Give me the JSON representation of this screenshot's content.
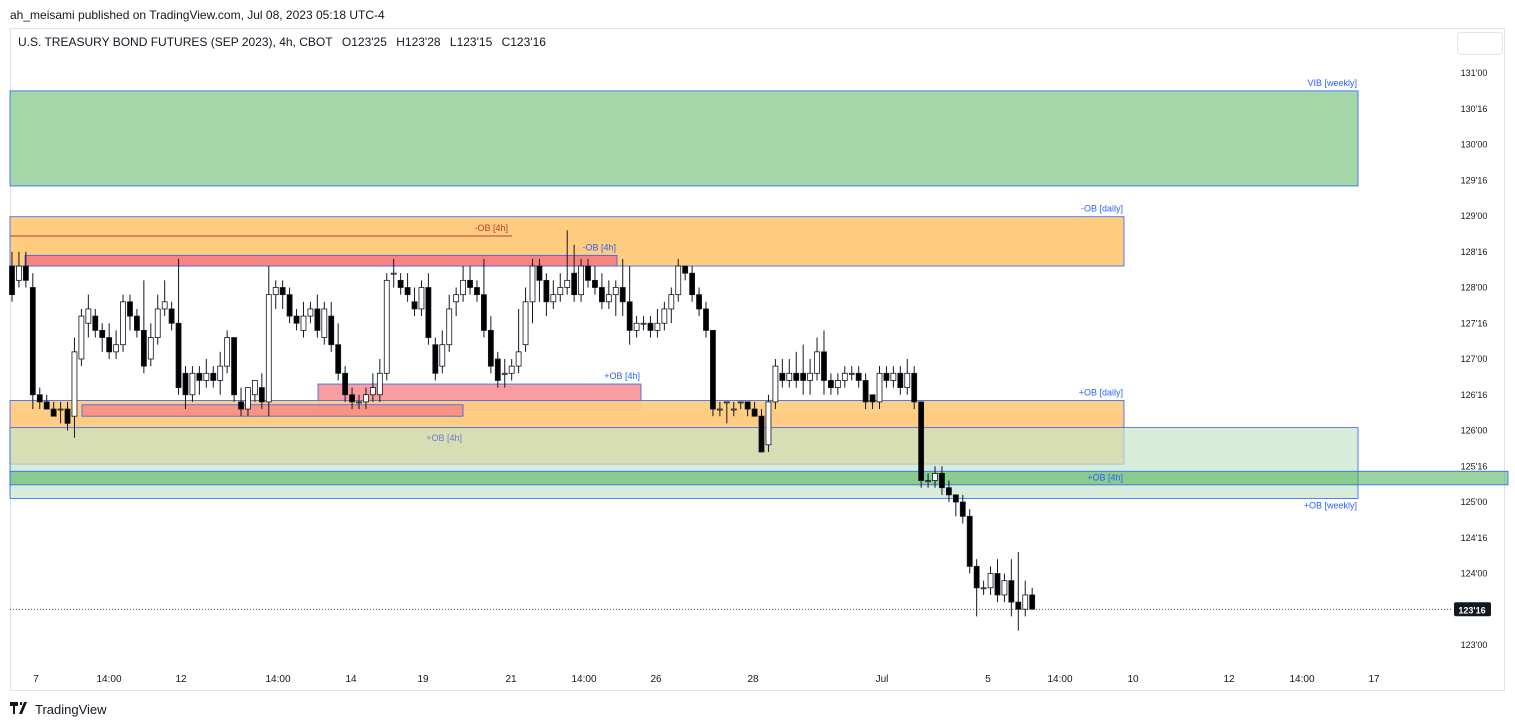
{
  "publisher_line": "ah_meisami published on TradingView.com, Jul 08, 2023 05:18 UTC-4",
  "instrument": {
    "name": "U.S. TREASURY BOND FUTURES (SEP 2023), 4h, CBOT",
    "open": "O123'25",
    "high": "H123'28",
    "low": "L123'15",
    "close": "C123'16"
  },
  "footer": {
    "brand": "TradingView",
    "logo_icon": "tradingview-logo-icon"
  },
  "colors": {
    "bull": "#ffffff",
    "bear": "#000000",
    "vib": "#a5d6a7",
    "ob_daily": "#ffcc80",
    "ob_4h_bear": "#f77c80",
    "ob_weekly": "#c8e6c9",
    "box_border": "#2962ff",
    "label": "#2962ff"
  },
  "chart_data": {
    "type": "candlestick",
    "title": "U.S. TREASURY BOND FUTURES (SEP 2023), 4h, CBOT",
    "y_axis": {
      "min": 122.875,
      "max": 131.0625,
      "tick_labels": [
        "131'00",
        "130'16",
        "130'00",
        "129'16",
        "129'00",
        "128'16",
        "128'00",
        "127'16",
        "127'00",
        "126'16",
        "126'00",
        "125'16",
        "125'00",
        "124'16",
        "124'00",
        "123'00"
      ]
    },
    "x_axis": {
      "tick_labels": [
        "7",
        "14:00",
        "12",
        "14:00",
        "14",
        "19",
        "21",
        "14:00",
        "26",
        "28",
        "Jul",
        "5",
        "14:00",
        "10",
        "12",
        "14:00",
        "17"
      ]
    },
    "last_price": "123'16",
    "zones": [
      {
        "label": "VIB [weekly]",
        "low": 129.42,
        "high": 130.75
      },
      {
        "label": "-OB [daily]",
        "low": 128.3,
        "high": 128.99
      },
      {
        "label": "-OB [4h]",
        "low": 128.72,
        "high": 128.72
      },
      {
        "label": "-OB [4h]",
        "low": 128.3,
        "high": 128.45
      },
      {
        "label": "+OB [4h]",
        "low": 126.28,
        "high": 126.65
      },
      {
        "label": "+OB [daily]",
        "low": 125.53,
        "high": 126.42
      },
      {
        "label": "+OB [4h]",
        "low": 126.2,
        "high": 126.36
      },
      {
        "label": "+OB [weekly]",
        "low": 125.05,
        "high": 126.04
      },
      {
        "label": "+OB [4h]",
        "low": 125.24,
        "high": 125.43
      }
    ],
    "candles": [
      [
        128.3,
        127.9,
        128.5,
        127.8
      ],
      [
        128.1,
        128.3,
        128.5,
        128.0
      ],
      [
        128.3,
        128.1,
        128.5,
        128.0
      ],
      [
        128.0,
        126.5,
        128.2,
        126.3
      ],
      [
        126.5,
        126.4,
        126.6,
        126.3
      ],
      [
        126.4,
        126.3,
        126.5,
        126.3
      ],
      [
        126.3,
        126.2,
        126.4,
        126.2
      ],
      [
        126.3,
        126.3,
        126.4,
        126.1
      ],
      [
        126.3,
        126.1,
        126.4,
        126.0
      ],
      [
        126.2,
        127.1,
        127.3,
        125.9
      ],
      [
        127.0,
        127.6,
        127.7,
        126.9
      ],
      [
        127.5,
        127.7,
        127.9,
        127.3
      ],
      [
        127.6,
        127.4,
        127.7,
        127.3
      ],
      [
        127.4,
        127.3,
        127.5,
        127.1
      ],
      [
        127.3,
        127.1,
        127.5,
        127.0
      ],
      [
        127.1,
        127.2,
        127.4,
        127.0
      ],
      [
        127.2,
        127.8,
        127.9,
        127.1
      ],
      [
        127.8,
        127.6,
        127.9,
        127.4
      ],
      [
        127.6,
        127.4,
        127.7,
        127.3
      ],
      [
        127.4,
        126.9,
        128.1,
        126.8
      ],
      [
        127.0,
        127.3,
        127.5,
        126.9
      ],
      [
        127.3,
        127.7,
        127.9,
        127.2
      ],
      [
        127.7,
        127.8,
        128.1,
        127.6
      ],
      [
        127.7,
        127.5,
        127.8,
        127.4
      ],
      [
        127.5,
        126.6,
        128.4,
        126.5
      ],
      [
        126.8,
        126.5,
        126.9,
        126.3
      ],
      [
        126.5,
        126.8,
        126.9,
        126.4
      ],
      [
        126.8,
        126.7,
        126.9,
        126.5
      ],
      [
        126.7,
        126.8,
        127.0,
        126.6
      ],
      [
        126.8,
        126.7,
        126.9,
        126.6
      ],
      [
        126.7,
        126.9,
        127.1,
        126.5
      ],
      [
        126.9,
        127.3,
        127.4,
        126.8
      ],
      [
        127.3,
        126.5,
        127.3,
        126.4
      ],
      [
        126.4,
        126.3,
        126.6,
        126.2
      ],
      [
        126.3,
        126.6,
        126.6,
        126.2
      ],
      [
        126.5,
        126.7,
        126.7,
        126.4
      ],
      [
        126.6,
        126.4,
        126.8,
        126.3
      ],
      [
        126.4,
        127.9,
        128.3,
        126.2
      ],
      [
        127.9,
        128.0,
        128.1,
        127.7
      ],
      [
        128.0,
        127.9,
        128.1,
        127.7
      ],
      [
        127.9,
        127.6,
        128.0,
        127.5
      ],
      [
        127.6,
        127.5,
        127.7,
        127.4
      ],
      [
        127.4,
        127.6,
        127.8,
        127.3
      ],
      [
        127.6,
        127.7,
        127.8,
        127.5
      ],
      [
        127.7,
        127.4,
        127.9,
        127.3
      ],
      [
        127.3,
        127.7,
        127.8,
        127.2
      ],
      [
        127.6,
        127.2,
        127.8,
        127.1
      ],
      [
        127.2,
        126.8,
        127.5,
        126.7
      ],
      [
        126.8,
        126.5,
        126.9,
        126.4
      ],
      [
        126.5,
        126.4,
        126.6,
        126.3
      ],
      [
        126.4,
        126.4,
        126.5,
        126.3
      ],
      [
        126.4,
        126.5,
        126.6,
        126.3
      ],
      [
        126.5,
        126.6,
        126.8,
        126.4
      ],
      [
        126.5,
        126.8,
        127.0,
        126.4
      ],
      [
        126.8,
        128.1,
        128.2,
        126.7
      ],
      [
        128.2,
        128.2,
        128.4,
        128.0
      ],
      [
        128.1,
        128.0,
        128.2,
        127.9
      ],
      [
        128.0,
        127.9,
        128.2,
        127.8
      ],
      [
        127.8,
        127.7,
        128.0,
        127.6
      ],
      [
        127.7,
        128.0,
        128.1,
        127.6
      ],
      [
        128.0,
        127.3,
        128.2,
        127.2
      ],
      [
        127.2,
        126.8,
        127.3,
        126.7
      ],
      [
        126.9,
        127.2,
        127.4,
        126.8
      ],
      [
        127.2,
        127.7,
        127.9,
        127.1
      ],
      [
        127.8,
        127.9,
        128.0,
        127.6
      ],
      [
        127.9,
        128.1,
        128.3,
        127.8
      ],
      [
        128.1,
        128.0,
        128.3,
        127.9
      ],
      [
        128.0,
        127.9,
        128.1,
        127.8
      ],
      [
        127.9,
        127.4,
        128.4,
        127.3
      ],
      [
        127.4,
        126.9,
        127.6,
        126.8
      ],
      [
        127.0,
        126.7,
        127.1,
        126.6
      ],
      [
        126.8,
        126.8,
        127.0,
        126.6
      ],
      [
        126.8,
        126.9,
        127.0,
        126.7
      ],
      [
        126.9,
        127.1,
        127.7,
        126.8
      ],
      [
        127.2,
        127.8,
        128.0,
        127.1
      ],
      [
        127.8,
        128.3,
        128.4,
        127.5
      ],
      [
        128.3,
        128.1,
        128.4,
        127.8
      ],
      [
        128.1,
        127.8,
        128.2,
        127.6
      ],
      [
        127.8,
        127.9,
        128.1,
        127.7
      ],
      [
        127.9,
        128.0,
        128.2,
        127.8
      ],
      [
        128.0,
        128.1,
        128.8,
        127.9
      ],
      [
        128.2,
        127.9,
        128.6,
        127.8
      ],
      [
        127.9,
        128.3,
        128.4,
        127.8
      ],
      [
        128.3,
        128.1,
        128.4,
        128.0
      ],
      [
        128.1,
        128.0,
        128.3,
        127.9
      ],
      [
        128.0,
        127.8,
        128.2,
        127.7
      ],
      [
        127.8,
        127.9,
        128.1,
        127.7
      ],
      [
        127.9,
        128.0,
        128.1,
        127.6
      ],
      [
        128.0,
        127.8,
        128.4,
        127.6
      ],
      [
        127.8,
        127.4,
        128.3,
        127.2
      ],
      [
        127.4,
        127.5,
        127.6,
        127.3
      ],
      [
        127.5,
        127.5,
        127.6,
        127.4
      ],
      [
        127.5,
        127.4,
        127.6,
        127.3
      ],
      [
        127.4,
        127.5,
        127.7,
        127.3
      ],
      [
        127.5,
        127.7,
        127.8,
        127.4
      ],
      [
        127.7,
        127.9,
        128.0,
        127.5
      ],
      [
        127.9,
        128.3,
        128.4,
        127.8
      ],
      [
        128.3,
        128.2,
        128.3,
        128.1
      ],
      [
        128.2,
        127.9,
        128.3,
        127.8
      ],
      [
        127.9,
        127.7,
        128.0,
        127.6
      ],
      [
        127.7,
        127.4,
        127.8,
        127.3
      ],
      [
        127.4,
        126.3,
        127.4,
        126.2
      ],
      [
        126.3,
        126.3,
        126.4,
        126.2
      ],
      [
        126.4,
        126.4,
        126.4,
        126.1
      ],
      [
        126.3,
        126.3,
        126.4,
        126.2
      ],
      [
        126.4,
        126.4,
        126.4,
        126.3
      ],
      [
        126.4,
        126.3,
        126.4,
        126.2
      ],
      [
        126.3,
        126.2,
        126.4,
        126.2
      ],
      [
        126.2,
        125.7,
        126.3,
        125.7
      ],
      [
        125.8,
        126.4,
        126.5,
        125.7
      ],
      [
        126.4,
        126.9,
        127.0,
        126.3
      ],
      [
        126.8,
        126.7,
        127.0,
        126.6
      ],
      [
        126.7,
        126.8,
        127.0,
        126.6
      ],
      [
        126.8,
        126.7,
        127.1,
        126.6
      ],
      [
        126.8,
        126.7,
        127.2,
        126.5
      ],
      [
        126.7,
        126.8,
        127.0,
        126.5
      ],
      [
        126.8,
        127.1,
        127.3,
        126.7
      ],
      [
        127.1,
        126.7,
        127.4,
        126.5
      ],
      [
        126.7,
        126.6,
        126.8,
        126.5
      ],
      [
        126.6,
        126.7,
        126.8,
        126.5
      ],
      [
        126.7,
        126.8,
        126.9,
        126.6
      ],
      [
        126.8,
        126.8,
        126.9,
        126.7
      ],
      [
        126.8,
        126.7,
        126.9,
        126.6
      ],
      [
        126.7,
        126.4,
        126.8,
        126.3
      ],
      [
        126.5,
        126.4,
        126.5,
        126.3
      ],
      [
        126.4,
        126.8,
        126.9,
        126.3
      ],
      [
        126.8,
        126.7,
        126.9,
        126.6
      ],
      [
        126.7,
        126.8,
        126.9,
        126.6
      ],
      [
        126.8,
        126.6,
        126.9,
        126.5
      ],
      [
        126.6,
        126.8,
        127.0,
        126.5
      ],
      [
        126.8,
        126.4,
        126.9,
        126.3
      ],
      [
        126.4,
        125.3,
        126.4,
        125.2
      ],
      [
        125.3,
        125.3,
        125.4,
        125.2
      ],
      [
        125.3,
        125.4,
        125.5,
        125.2
      ],
      [
        125.4,
        125.2,
        125.5,
        125.1
      ],
      [
        125.2,
        125.1,
        125.3,
        125.0
      ],
      [
        125.1,
        125.0,
        125.1,
        124.8
      ],
      [
        125.0,
        124.8,
        125.1,
        124.7
      ],
      [
        124.8,
        124.1,
        124.9,
        124.0
      ],
      [
        124.1,
        123.8,
        124.2,
        123.4
      ],
      [
        123.8,
        123.8,
        123.9,
        123.7
      ],
      [
        123.8,
        124.0,
        124.1,
        123.7
      ],
      [
        124.0,
        123.7,
        124.2,
        123.6
      ],
      [
        123.7,
        123.9,
        124.0,
        123.6
      ],
      [
        123.9,
        123.6,
        124.2,
        123.4
      ],
      [
        123.6,
        123.5,
        124.3,
        123.2
      ],
      [
        123.5,
        123.7,
        123.9,
        123.4
      ],
      [
        123.7,
        123.5,
        123.8,
        123.5
      ]
    ]
  }
}
